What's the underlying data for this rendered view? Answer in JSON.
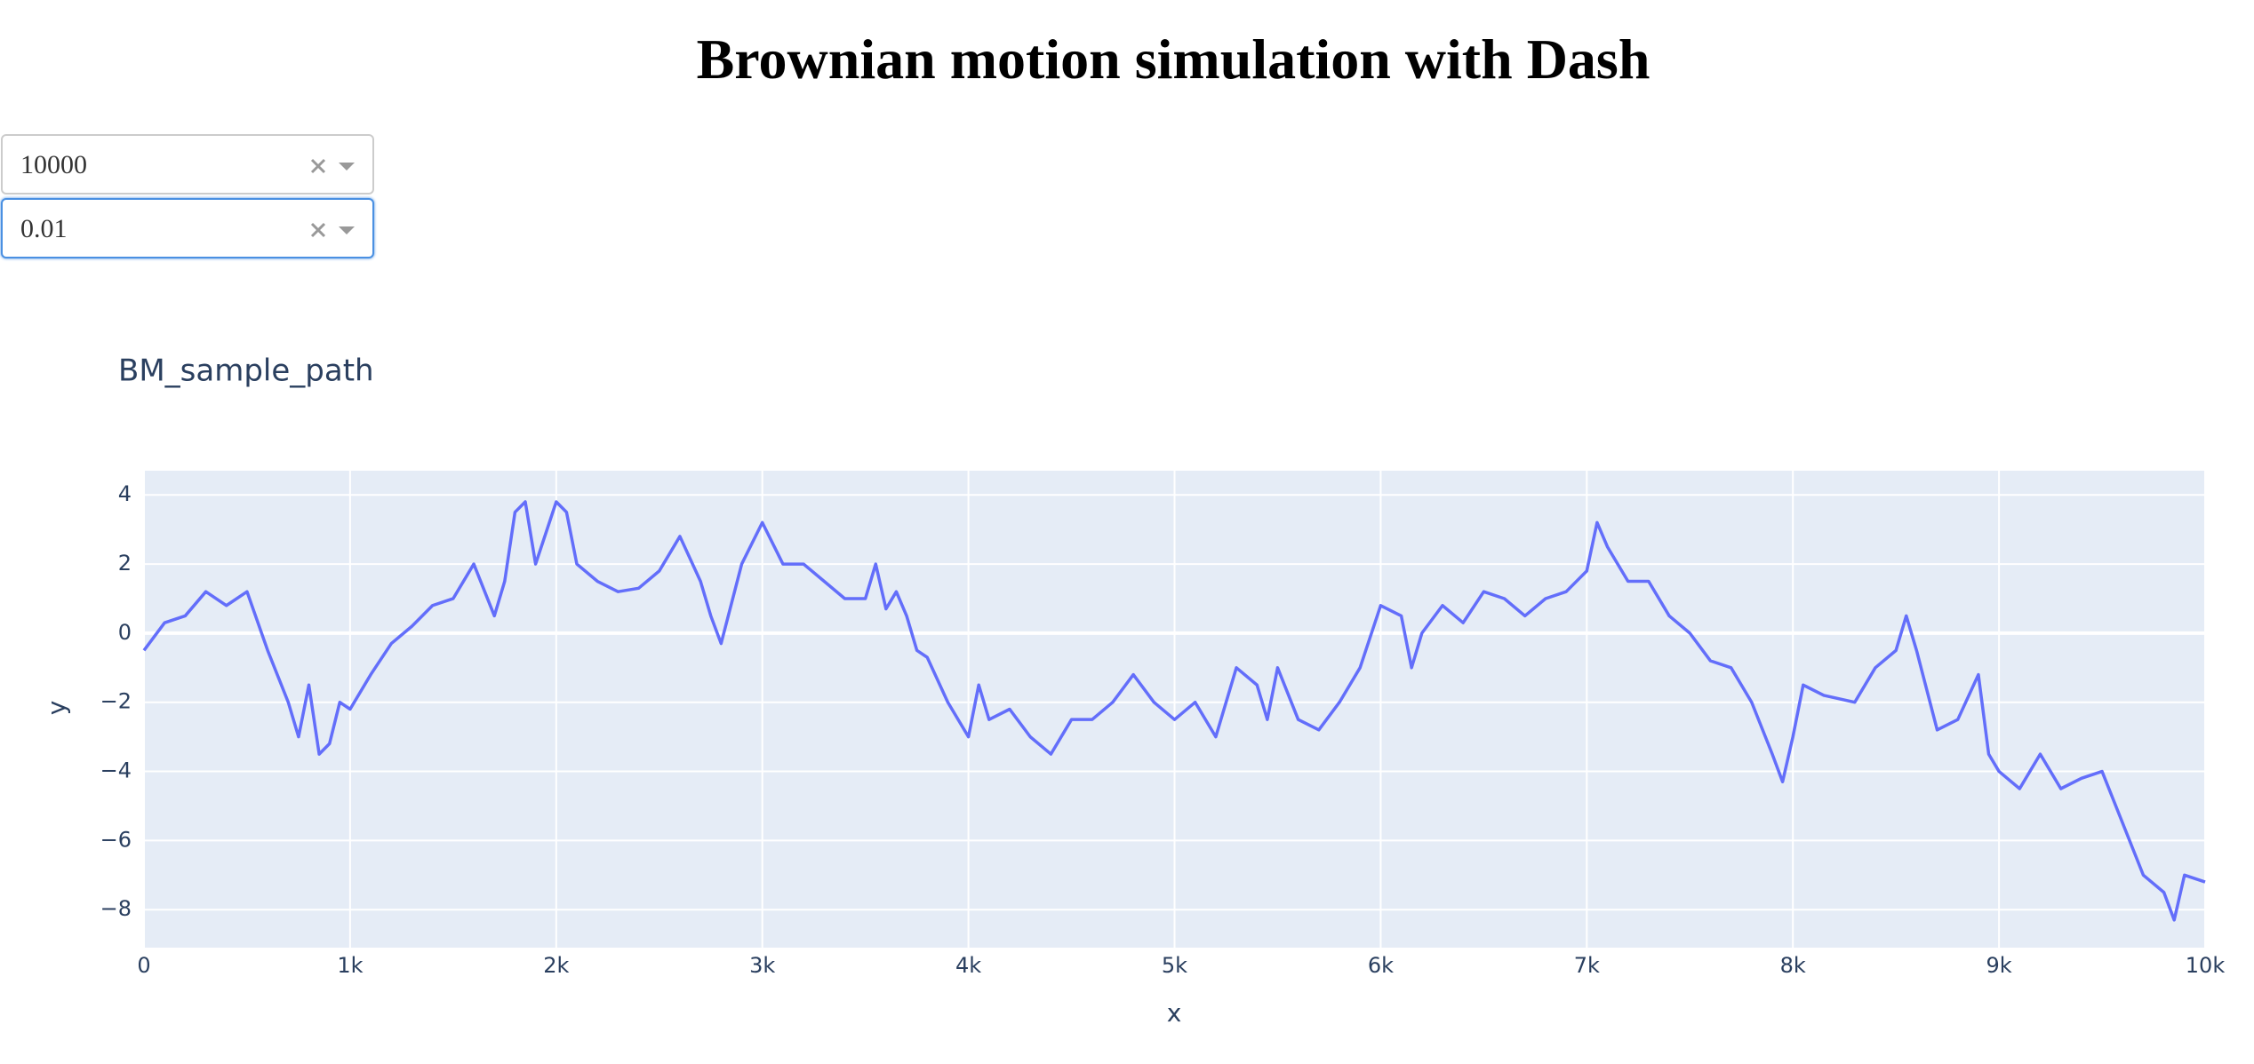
{
  "header": {
    "title": "Brownian motion simulation with Dash"
  },
  "dropdowns": [
    "10000",
    "0.01"
  ],
  "chart_data": {
    "type": "line",
    "title": "BM_sample_path",
    "x_label": "x",
    "y_label": "y",
    "x": [
      0,
      100,
      200,
      300,
      400,
      500,
      600,
      700,
      750,
      800,
      850,
      900,
      950,
      1000,
      1100,
      1200,
      1300,
      1400,
      1500,
      1600,
      1700,
      1750,
      1800,
      1850,
      1900,
      2000,
      2050,
      2100,
      2200,
      2300,
      2400,
      2500,
      2600,
      2700,
      2750,
      2800,
      2900,
      3000,
      3100,
      3200,
      3300,
      3400,
      3500,
      3550,
      3600,
      3650,
      3700,
      3750,
      3800,
      3900,
      4000,
      4050,
      4100,
      4200,
      4300,
      4400,
      4500,
      4600,
      4700,
      4800,
      4900,
      5000,
      5100,
      5200,
      5300,
      5400,
      5450,
      5500,
      5600,
      5700,
      5800,
      5900,
      6000,
      6100,
      6150,
      6200,
      6300,
      6400,
      6500,
      6600,
      6700,
      6800,
      6900,
      7000,
      7050,
      7100,
      7200,
      7300,
      7400,
      7500,
      7600,
      7700,
      7800,
      7900,
      7950,
      8000,
      8050,
      8150,
      8300,
      8400,
      8500,
      8550,
      8600,
      8700,
      8800,
      8900,
      8950,
      9000,
      9100,
      9200,
      9300,
      9400,
      9500,
      9600,
      9700,
      9800,
      9850,
      9900,
      10000
    ],
    "series": [
      {
        "name": "BM_sample_path",
        "color": "#636efa",
        "values": [
          -0.5,
          0.3,
          0.5,
          1.2,
          0.8,
          1.2,
          -0.5,
          -2.0,
          -3.0,
          -1.5,
          -3.5,
          -3.2,
          -2.0,
          -2.2,
          -1.2,
          -0.3,
          0.2,
          0.8,
          1.0,
          2.0,
          0.5,
          1.5,
          3.5,
          3.8,
          2.0,
          3.8,
          3.5,
          2.0,
          1.5,
          1.2,
          1.3,
          1.8,
          2.8,
          1.5,
          0.5,
          -0.3,
          2.0,
          3.2,
          2.0,
          2.0,
          1.5,
          1.0,
          1.0,
          2.0,
          0.7,
          1.2,
          0.5,
          -0.5,
          -0.7,
          -2.0,
          -3.0,
          -1.5,
          -2.5,
          -2.2,
          -3.0,
          -3.5,
          -2.5,
          -2.5,
          -2.0,
          -1.2,
          -2.0,
          -2.5,
          -2.0,
          -3.0,
          -1.0,
          -1.5,
          -2.5,
          -1.0,
          -2.5,
          -2.8,
          -2.0,
          -1.0,
          0.8,
          0.5,
          -1.0,
          0.0,
          0.8,
          0.3,
          1.2,
          1.0,
          0.5,
          1.0,
          1.2,
          1.8,
          3.2,
          2.5,
          1.5,
          1.5,
          0.5,
          0.0,
          -0.8,
          -1.0,
          -2.0,
          -3.5,
          -4.3,
          -3.0,
          -1.5,
          -1.8,
          -2.0,
          -1.0,
          -0.5,
          0.5,
          -0.5,
          -2.8,
          -2.5,
          -1.2,
          -3.5,
          -4.0,
          -4.5,
          -3.5,
          -4.5,
          -4.2,
          -4.0,
          -5.5,
          -7.0,
          -7.5,
          -8.3,
          -7.0,
          -7.2
        ]
      }
    ],
    "xlim": [
      0,
      10000
    ],
    "ylim": [
      -9.1,
      4.7
    ],
    "xticks": [
      0,
      {
        "value": 1000,
        "label": "1k"
      },
      {
        "value": 2000,
        "label": "2k"
      },
      {
        "value": 3000,
        "label": "3k"
      },
      {
        "value": 4000,
        "label": "4k"
      },
      {
        "value": 5000,
        "label": "5k"
      },
      {
        "value": 6000,
        "label": "6k"
      },
      {
        "value": 7000,
        "label": "7k"
      },
      {
        "value": 8000,
        "label": "8k"
      },
      {
        "value": 9000,
        "label": "9k"
      },
      {
        "value": 10000,
        "label": "10k"
      }
    ],
    "yticks": [
      {
        "value": -8,
        "label": "−8"
      },
      {
        "value": -6,
        "label": "−6"
      },
      {
        "value": -4,
        "label": "−4"
      },
      {
        "value": -2,
        "label": "−2"
      },
      0,
      2,
      4
    ],
    "grid": true
  }
}
